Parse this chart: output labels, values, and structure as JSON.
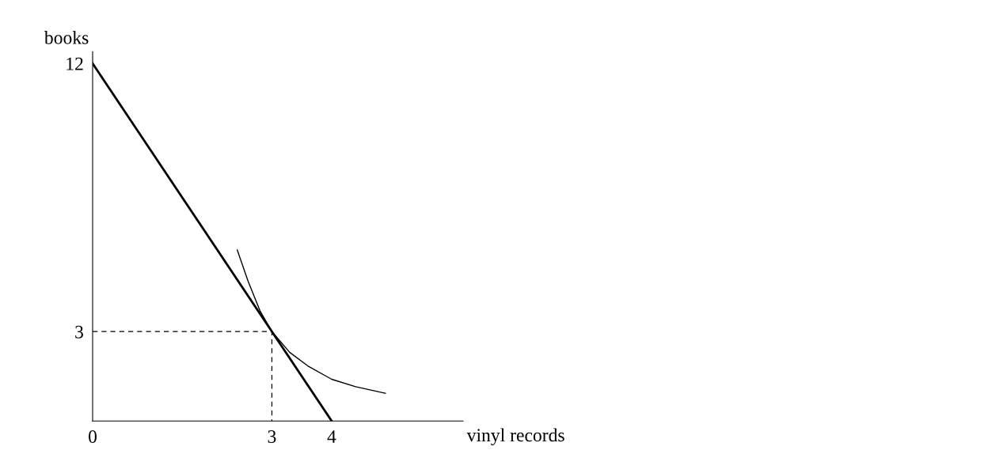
{
  "chart_data": {
    "type": "line",
    "xlabel": "vinyl records",
    "ylabel": "books",
    "xlim": [
      0,
      6.2
    ],
    "ylim": [
      0,
      12.4
    ],
    "xticks": [
      0,
      3,
      4
    ],
    "yticks": [
      3,
      12
    ],
    "grid": false,
    "legend": false,
    "series": [
      {
        "color": "#000000",
        "x": [
          0,
          4
        ],
        "values": [
          12,
          0
        ],
        "line_style": "solid"
      },
      {
        "color": "#000000",
        "x": [
          2.42,
          2.6,
          2.8,
          3,
          3.3,
          3.6,
          4.0,
          4.4,
          4.9
        ],
        "values": [
          5.74,
          4.7,
          3.7,
          3,
          2.3,
          1.85,
          1.4,
          1.15,
          0.93
        ],
        "line_style": "solid"
      },
      {
        "color": "#000000",
        "x": [
          0,
          3,
          3
        ],
        "values": [
          3,
          3,
          0
        ],
        "line_style": "dashed"
      }
    ]
  }
}
